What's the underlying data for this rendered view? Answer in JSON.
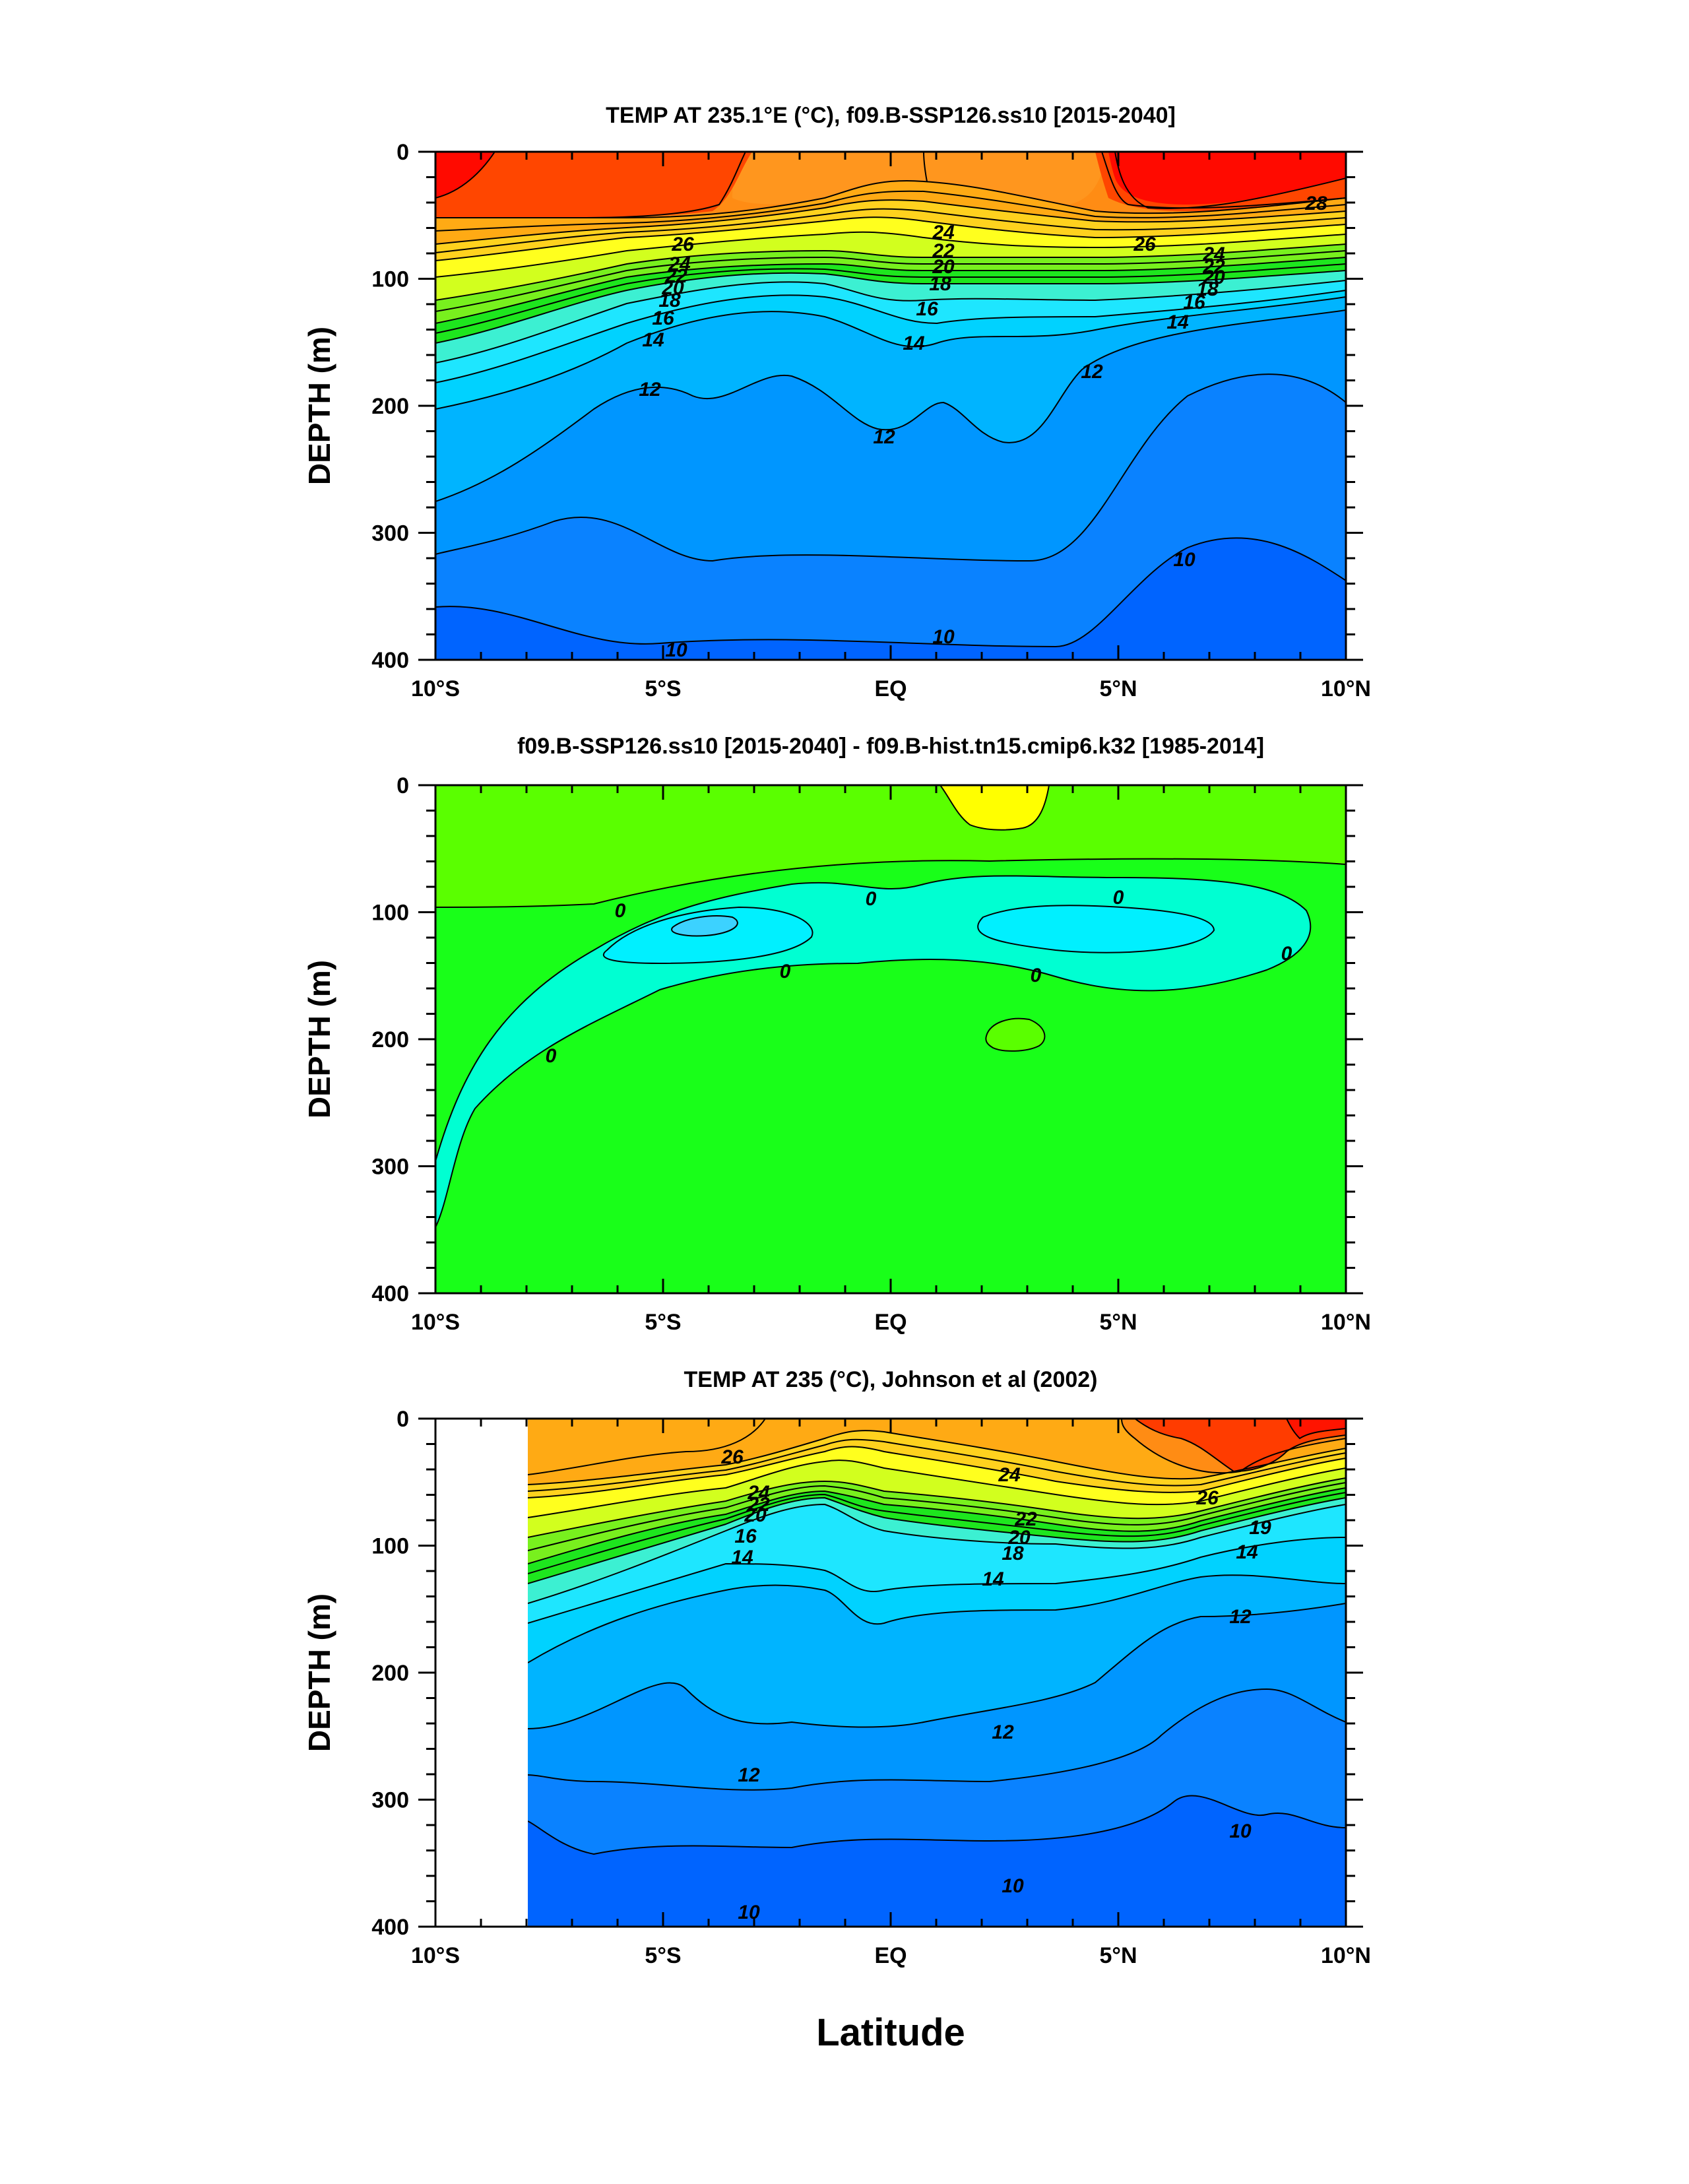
{
  "chart_data": [
    {
      "type": "contour",
      "title": "TEMP AT 235.1°E (°C), f09.B-SSP126.ss10 [2015-2040]",
      "ylabel": "DEPTH (m)",
      "xlabel": "",
      "xlim": [
        -10,
        10
      ],
      "ylim": [
        0,
        400
      ],
      "x_ticks": [
        "10°S",
        "5°S",
        "EQ",
        "5°N",
        "10°N"
      ],
      "y_ticks": [
        "0",
        "100",
        "200",
        "300",
        "400"
      ],
      "contour_interval": 1,
      "contour_labels": [
        "28",
        "26",
        "26",
        "24",
        "24",
        "24",
        "22",
        "22",
        "22",
        "20",
        "20",
        "20",
        "18",
        "18",
        "18",
        "16",
        "16",
        "16",
        "14",
        "14",
        "14",
        "12",
        "12",
        "12",
        "10",
        "10",
        "10"
      ],
      "colors": {
        "warm": "#ff0a00",
        "orange": "#ff8c14",
        "yellow": "#ffff1e",
        "green": "#1ee61e",
        "cyan": "#00d2ff",
        "blue": "#0064ff"
      }
    },
    {
      "type": "contour",
      "title": "f09.B-SSP126.ss10 [2015-2040] - f09.B-hist.tn15.cmip6.k32 [1985-2014]",
      "ylabel": "DEPTH (m)",
      "xlabel": "",
      "xlim": [
        -10,
        10
      ],
      "ylim": [
        0,
        400
      ],
      "x_ticks": [
        "10°S",
        "5°S",
        "EQ",
        "5°N",
        "10°N"
      ],
      "y_ticks": [
        "0",
        "100",
        "200",
        "300",
        "400"
      ],
      "contour_labels": [
        "0",
        "0",
        "0",
        "0",
        "0",
        "0",
        "0"
      ],
      "colors": {
        "positive": "#5aff00",
        "zero_band": "#19ff19",
        "negative": "#00ffd2",
        "more_negative": "#00f0ff",
        "max": "#ffff00"
      }
    },
    {
      "type": "contour",
      "title": "TEMP AT 235 (°C), Johnson et al (2002)",
      "ylabel": "DEPTH (m)",
      "xlabel": "Latitude",
      "xlim": [
        -10,
        10
      ],
      "ylim": [
        0,
        400
      ],
      "x_ticks": [
        "10°S",
        "5°S",
        "EQ",
        "5°N",
        "10°N"
      ],
      "y_ticks": [
        "0",
        "100",
        "200",
        "300",
        "400"
      ],
      "data_start_lat": -8,
      "contour_labels": [
        "26",
        "26",
        "24",
        "24",
        "22",
        "22",
        "20",
        "20",
        "18",
        "16",
        "19",
        "14",
        "14",
        "14",
        "12",
        "12",
        "12",
        "10",
        "10",
        "10"
      ],
      "colors": {
        "warm": "#ff3c00",
        "orange": "#ff8c14",
        "yellow": "#ffff1e",
        "green": "#1ee61e",
        "cyan": "#00d2ff",
        "blue": "#0064ff"
      }
    }
  ]
}
